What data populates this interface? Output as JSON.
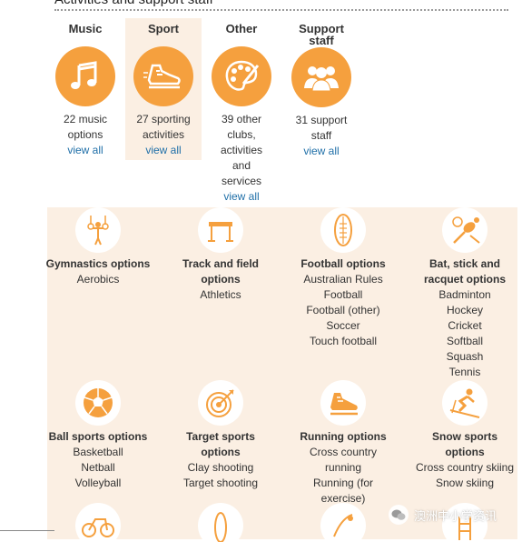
{
  "page": {
    "heading": "Activities and support staff"
  },
  "categories": [
    {
      "title": "Music",
      "desc": [
        "22 music",
        "options"
      ],
      "view_all": "view all"
    },
    {
      "title": "Sport",
      "desc": [
        "27 sporting",
        "activities"
      ],
      "view_all": "view all"
    },
    {
      "title": "Other",
      "desc": [
        "39 other",
        "clubs,",
        "activities",
        "and",
        "services"
      ],
      "view_all": "view all"
    },
    {
      "title": "Support staff",
      "title_lines": [
        "Support",
        "staff"
      ],
      "desc": [
        "31 support",
        "staff"
      ],
      "view_all": "view all"
    }
  ],
  "sport_options": [
    {
      "title": [
        "Gymnastics options"
      ],
      "items": [
        "Aerobics"
      ],
      "icon": "gymnastics-rings-icon"
    },
    {
      "title": [
        "Track and field",
        "options"
      ],
      "items": [
        "Athletics"
      ],
      "icon": "hurdle-icon"
    },
    {
      "title": [
        "Football options"
      ],
      "items": [
        "Australian Rules",
        "Football",
        "Football (other)",
        "Soccer",
        "Touch football"
      ],
      "icon": "football-icon"
    },
    {
      "title": [
        "Bat, stick and",
        "racquet options"
      ],
      "items": [
        "Badminton",
        "Hockey",
        "Cricket",
        "Softball",
        "Squash",
        "Tennis"
      ],
      "icon": "racquet-icon"
    },
    {
      "title": [
        "Ball sports options"
      ],
      "items": [
        "Basketball",
        "Netball",
        "Volleyball"
      ],
      "icon": "ball-icon"
    },
    {
      "title": [
        "Target sports",
        "options"
      ],
      "items": [
        "Clay shooting",
        "Target shooting"
      ],
      "icon": "target-icon"
    },
    {
      "title": [
        "Running options"
      ],
      "items": [
        "Cross country",
        "running",
        "Running (for",
        "exercise)"
      ],
      "icon": "running-shoe-icon"
    },
    {
      "title": [
        "Snow sports",
        "options"
      ],
      "items": [
        "Cross country skiing",
        "Snow skiing"
      ],
      "icon": "skier-icon"
    }
  ],
  "watermark": "澳洲中小学资讯",
  "colors": {
    "accent": "#f5a03e",
    "panel_bg": "#fbefe3",
    "link": "#1f6fa8"
  }
}
